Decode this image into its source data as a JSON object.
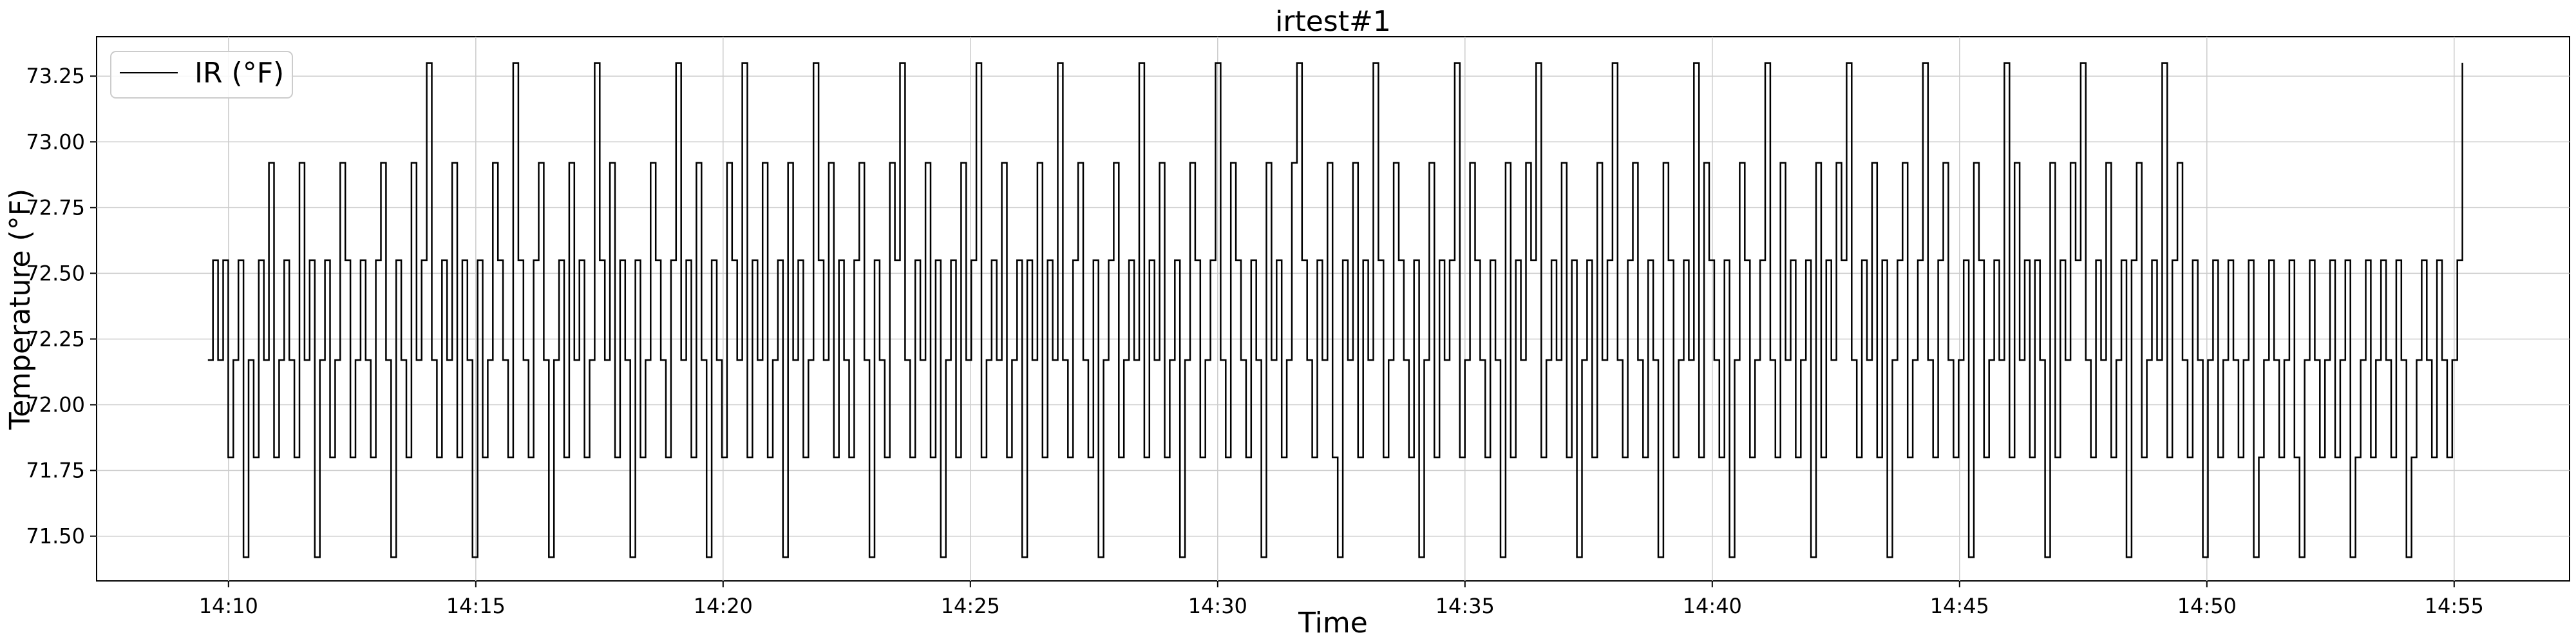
{
  "chart_data": {
    "type": "line",
    "title": "irtest#1",
    "xlabel": "Time",
    "ylabel": "Temperature (°F)",
    "x_range": [
      "14:07:20",
      "14:57:20"
    ],
    "ylim": [
      71.33,
      73.4
    ],
    "x_ticks": [
      "14:10",
      "14:15",
      "14:20",
      "14:25",
      "14:30",
      "14:35",
      "14:40",
      "14:45",
      "14:50",
      "14:55"
    ],
    "y_ticks": [
      71.5,
      71.75,
      72.0,
      72.25,
      72.5,
      72.75,
      73.0,
      73.25
    ],
    "y_tick_labels": [
      "71.50",
      "71.75",
      "72.00",
      "72.25",
      "72.50",
      "72.75",
      "73.00",
      "73.25"
    ],
    "grid": true,
    "legend": "top-left",
    "series": [
      {
        "name": "IR (°F)",
        "color": "#000000",
        "x_start": "14:09:35",
        "x_end": "14:55:10",
        "levels": [
          71.42,
          71.8,
          72.17,
          72.55,
          72.92,
          73.3
        ],
        "level_sequence": [
          2,
          3,
          2,
          3,
          1,
          2,
          3,
          0,
          2,
          1,
          3,
          2,
          4,
          1,
          2,
          3,
          2,
          1,
          4,
          2,
          3,
          0,
          2,
          3,
          1,
          2,
          4,
          3,
          1,
          2,
          3,
          2,
          1,
          3,
          4,
          2,
          0,
          3,
          2,
          1,
          4,
          2,
          3,
          5,
          2,
          1,
          3,
          2,
          4,
          1,
          3,
          2,
          0,
          3,
          1,
          2,
          4,
          3,
          2,
          1,
          5,
          3,
          2,
          1,
          3,
          4,
          2,
          0,
          2,
          3,
          1,
          4,
          2,
          3,
          1,
          2,
          5,
          3,
          2,
          4,
          1,
          3,
          2,
          0,
          3,
          1,
          2,
          4,
          3,
          2,
          1,
          3,
          5,
          2,
          3,
          1,
          4,
          2,
          0,
          3,
          2,
          1,
          4,
          3,
          2,
          5,
          1,
          3,
          2,
          4,
          1,
          2,
          3,
          0,
          4,
          2,
          3,
          1,
          2,
          5,
          3,
          2,
          4,
          1,
          3,
          2,
          1,
          3,
          4,
          2,
          0,
          3,
          2,
          1,
          4,
          3,
          5,
          2,
          1,
          3,
          2,
          4,
          1,
          3,
          0,
          2,
          3,
          1,
          4,
          2,
          3,
          5,
          1,
          2,
          3,
          2,
          4,
          1,
          2,
          3,
          0,
          3,
          2,
          4,
          1,
          3,
          2,
          5,
          2,
          1,
          3,
          4,
          2,
          1,
          3,
          0,
          2,
          3,
          4,
          1,
          2,
          3,
          2,
          5,
          1,
          3,
          2,
          4,
          1,
          2,
          3,
          0,
          2,
          4,
          3,
          1,
          2,
          3,
          5,
          2,
          1,
          4,
          3,
          2,
          1,
          3,
          2,
          0,
          4,
          2,
          3,
          1,
          2,
          4,
          5,
          3,
          2,
          1,
          3,
          2,
          4,
          1,
          0,
          3,
          2,
          4,
          1,
          3,
          2,
          5,
          3,
          1,
          2,
          4,
          3,
          2,
          1,
          3,
          0,
          2,
          4,
          1,
          3,
          2,
          3,
          5,
          1,
          2,
          4,
          3,
          2,
          1,
          3,
          2,
          0,
          4,
          1,
          3,
          2,
          4,
          3,
          5,
          1,
          2,
          3,
          2,
          4,
          1,
          3,
          0,
          2,
          3,
          1,
          4,
          2,
          3,
          5,
          2,
          1,
          3,
          4,
          2,
          1,
          3,
          2,
          0,
          4,
          3,
          1,
          2,
          3,
          2,
          5,
          1,
          4,
          3,
          2,
          1,
          3,
          0,
          2,
          4,
          3,
          1,
          2,
          3,
          5,
          2,
          1,
          4,
          2,
          3,
          1,
          2,
          3,
          0,
          4,
          1,
          3,
          2,
          4,
          3,
          5,
          2,
          1,
          3,
          2,
          4,
          1,
          3,
          0,
          2,
          3,
          4,
          1,
          2,
          3,
          5,
          2,
          1,
          3,
          4,
          2,
          1,
          2,
          3,
          0,
          4,
          3,
          1,
          2,
          3,
          2,
          5,
          1,
          4,
          2,
          3,
          1,
          3,
          2,
          0,
          4,
          1,
          3,
          2,
          4,
          3,
          5,
          2,
          1,
          3,
          2,
          4,
          1,
          2,
          3,
          0,
          3,
          4,
          1,
          2,
          3,
          2,
          5,
          1,
          3,
          4,
          2,
          1,
          3,
          2,
          0,
          2,
          3,
          1,
          2,
          3,
          2,
          1,
          2,
          3,
          0,
          1,
          2,
          3,
          2,
          1,
          2,
          3,
          1,
          0,
          2,
          3,
          2,
          1,
          2,
          3,
          1,
          2,
          3,
          0,
          1,
          2,
          3,
          1,
          2,
          3,
          2,
          1,
          3,
          2,
          0,
          1,
          2,
          3,
          2,
          1,
          3,
          2,
          1,
          2,
          3,
          5
        ]
      }
    ]
  }
}
